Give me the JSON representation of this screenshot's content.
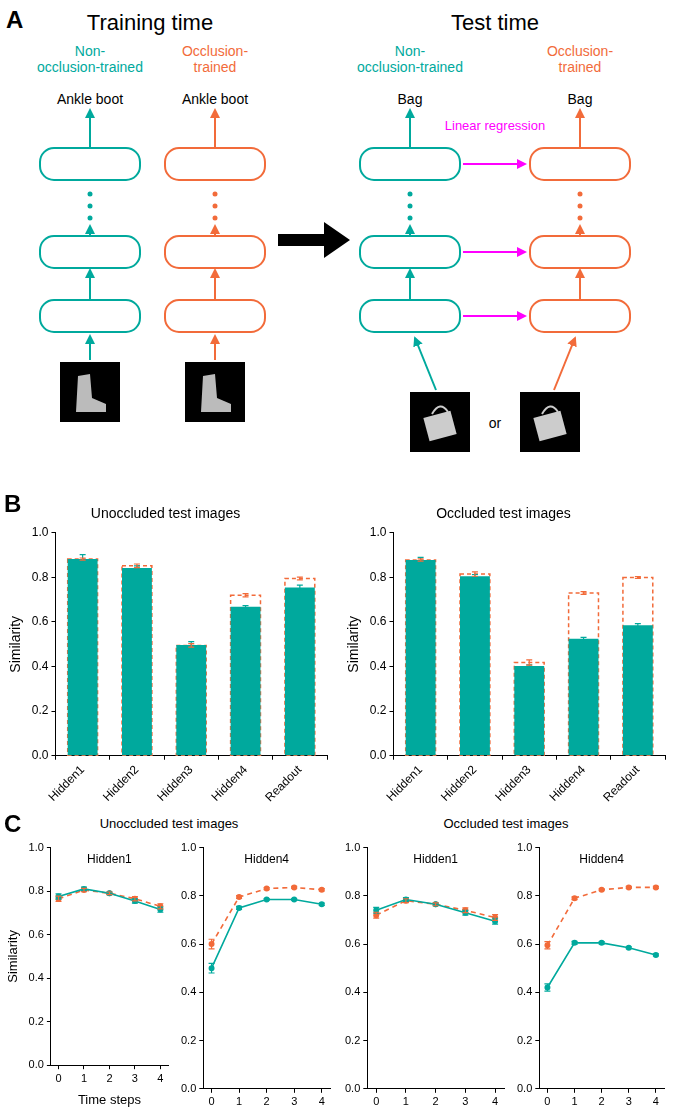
{
  "panel_labels": [
    "A",
    "B",
    "C"
  ],
  "diagram": {
    "training": {
      "title": "Training time",
      "networks": [
        {
          "name": "Non-occlusion-trained",
          "output": "Ankle boot"
        },
        {
          "name": "Occlusion-trained",
          "output": "Ankle boot"
        }
      ]
    },
    "test": {
      "title": "Test time",
      "networks": [
        {
          "name": "Non-occlusion-trained",
          "output": "Bag"
        },
        {
          "name": "Occlusion-trained",
          "output": "Bag"
        }
      ],
      "mapping": "Linear regression",
      "inputs_joiner": "or"
    }
  },
  "panel_c_group_titles": [
    "Unoccluded test images",
    "Occluded test images"
  ],
  "chart_data": [
    {
      "type": "bar",
      "title": "Unoccluded test images",
      "y_label": "Similarity",
      "categories": [
        "Hidden1",
        "Hidden2",
        "Hidden3",
        "Hidden4",
        "Readout"
      ],
      "series": [
        {
          "name": "Non-occlusion-trained",
          "color": "#00a99d",
          "values": [
            0.882,
            0.842,
            0.497,
            0.668,
            0.755
          ],
          "error": [
            0.02,
            0.01,
            0.015,
            0.005,
            0.01
          ]
        },
        {
          "name": "Occlusion-trained",
          "color": "#f26b3a",
          "line_style": "dashed",
          "values": [
            0.882,
            0.852,
            0.495,
            0.72,
            0.795
          ],
          "error": [
            0.005,
            0.008,
            0.008,
            0.007,
            0.006
          ]
        }
      ],
      "ylim": [
        0,
        1
      ],
      "yticks": [
        {
          "value": 0,
          "label": "0.0"
        },
        0.2,
        0.4,
        0.6,
        0.8,
        {
          "value": 1,
          "label": "1.0"
        }
      ],
      "grid": false
    },
    {
      "type": "bar",
      "title": "Occluded test images",
      "y_label": "Similarity",
      "categories": [
        "Hidden1",
        "Hidden2",
        "Hidden3",
        "Hidden4",
        "Readout"
      ],
      "series": [
        {
          "name": "Non-occlusion-trained",
          "color": "#00a99d",
          "values": [
            0.878,
            0.805,
            0.402,
            0.525,
            0.585
          ],
          "error": [
            0.012,
            0.008,
            0.006,
            0.006,
            0.008
          ]
        },
        {
          "name": "Occlusion-trained",
          "color": "#f26b3a",
          "line_style": "dashed",
          "values": [
            0.878,
            0.815,
            0.418,
            0.73,
            0.8
          ],
          "error": [
            0.005,
            0.01,
            0.012,
            0.006,
            0.004
          ]
        }
      ],
      "ylim": [
        0,
        1
      ],
      "yticks": [
        {
          "value": 0,
          "label": "0.0"
        },
        0.2,
        0.4,
        0.6,
        0.8,
        {
          "value": 1,
          "label": "1.0"
        }
      ],
      "grid": false
    },
    {
      "type": "line",
      "annotation": "Hidden1",
      "x_label": "Time steps",
      "y_label": "Similarity",
      "x": [
        0,
        1,
        2,
        3,
        4
      ],
      "series": [
        {
          "name": "Non-occlusion-trained",
          "color": "#00a99d",
          "marker": "circle",
          "values": [
            0.775,
            0.81,
            0.79,
            0.755,
            0.715
          ],
          "error": [
            0.012,
            0.008,
            0.006,
            0.01,
            0.012
          ]
        },
        {
          "name": "Occlusion-trained",
          "color": "#f26b3a",
          "line_style": "dashed",
          "marker": "circle",
          "values": [
            0.765,
            0.805,
            0.79,
            0.765,
            0.73
          ],
          "error": [
            0.012,
            0.008,
            0.006,
            0.01,
            0.012
          ]
        }
      ],
      "xlim": [
        -0.3,
        4.3
      ],
      "xticks": [
        0,
        1,
        2,
        3,
        4
      ],
      "ylim": [
        0,
        1
      ],
      "yticks": [
        {
          "value": 0,
          "label": "0.0"
        },
        0.2,
        0.4,
        0.6,
        0.8,
        {
          "value": 1,
          "label": "1.0"
        }
      ],
      "grid": false
    },
    {
      "type": "line",
      "annotation": "Hidden4",
      "x": [
        0,
        1,
        2,
        3,
        4
      ],
      "series": [
        {
          "name": "Non-occlusion-trained",
          "color": "#00a99d",
          "marker": "circle",
          "values": [
            0.5,
            0.75,
            0.785,
            0.785,
            0.765
          ],
          "error": [
            0.02,
            0.006,
            0.004,
            0.004,
            0.005
          ]
        },
        {
          "name": "Occlusion-trained",
          "color": "#f26b3a",
          "line_style": "dashed",
          "marker": "circle",
          "values": [
            0.6,
            0.795,
            0.83,
            0.835,
            0.825
          ],
          "error": [
            0.02,
            0.006,
            0.004,
            0.004,
            0.005
          ]
        }
      ],
      "xlim": [
        -0.3,
        4.3
      ],
      "xticks": [
        0,
        1,
        2,
        3,
        4
      ],
      "ylim": [
        0,
        1
      ],
      "yticks": [
        {
          "value": 0,
          "label": "0.0"
        },
        0.2,
        0.4,
        0.6,
        0.8,
        {
          "value": 1,
          "label": "1.0"
        }
      ],
      "grid": false
    },
    {
      "type": "line",
      "annotation": "Hidden1",
      "x": [
        0,
        1,
        2,
        3,
        4
      ],
      "series": [
        {
          "name": "Non-occlusion-trained",
          "color": "#00a99d",
          "marker": "circle",
          "values": [
            0.74,
            0.785,
            0.765,
            0.73,
            0.695
          ],
          "error": [
            0.012,
            0.008,
            0.006,
            0.01,
            0.012
          ]
        },
        {
          "name": "Occlusion-trained",
          "color": "#f26b3a",
          "line_style": "dashed",
          "marker": "circle",
          "values": [
            0.72,
            0.78,
            0.765,
            0.74,
            0.71
          ],
          "error": [
            0.012,
            0.008,
            0.006,
            0.01,
            0.012
          ]
        }
      ],
      "xlim": [
        -0.3,
        4.3
      ],
      "xticks": [
        0,
        1,
        2,
        3,
        4
      ],
      "ylim": [
        0,
        1
      ],
      "yticks": [
        {
          "value": 0,
          "label": "0.0"
        },
        0.2,
        0.4,
        0.6,
        0.8,
        {
          "value": 1,
          "label": "1.0"
        }
      ],
      "grid": false
    },
    {
      "type": "line",
      "annotation": "Hidden4",
      "x": [
        0,
        1,
        2,
        3,
        4
      ],
      "series": [
        {
          "name": "Non-occlusion-trained",
          "color": "#00a99d",
          "marker": "circle",
          "values": [
            0.42,
            0.605,
            0.605,
            0.585,
            0.555
          ],
          "error": [
            0.015,
            0.006,
            0.005,
            0.004,
            0.004
          ]
        },
        {
          "name": "Occlusion-trained",
          "color": "#f26b3a",
          "line_style": "dashed",
          "marker": "circle",
          "values": [
            0.595,
            0.79,
            0.825,
            0.835,
            0.835
          ],
          "error": [
            0.015,
            0.006,
            0.004,
            0.004,
            0.004
          ]
        }
      ],
      "xlim": [
        -0.3,
        4.3
      ],
      "xticks": [
        0,
        1,
        2,
        3,
        4
      ],
      "ylim": [
        0,
        1
      ],
      "yticks": [
        {
          "value": 0,
          "label": "0.0"
        },
        0.2,
        0.4,
        0.6,
        0.8,
        {
          "value": 1,
          "label": "1.0"
        }
      ],
      "grid": false
    }
  ]
}
